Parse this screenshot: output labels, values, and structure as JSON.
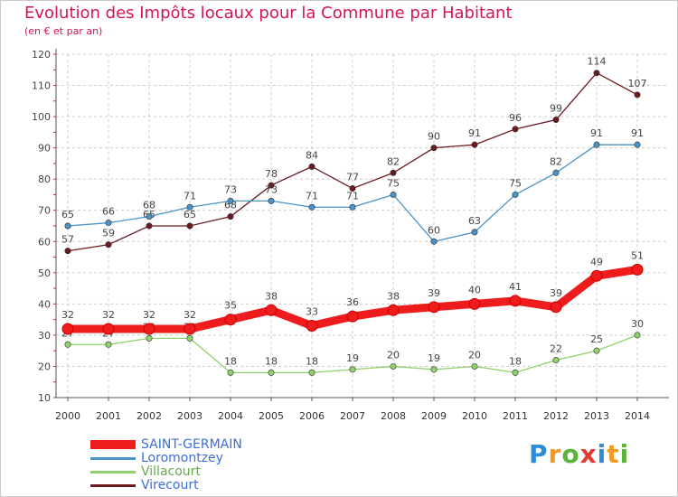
{
  "title": "Evolution des Impôts locaux pour la Commune par Habitant",
  "subtitle": "(en € et par an)",
  "logo": {
    "letters": [
      {
        "char": "P",
        "color": "#2e8bd6"
      },
      {
        "char": "r",
        "color": "#f29a1d"
      },
      {
        "char": "o",
        "color": "#5bb33a"
      },
      {
        "char": "x",
        "color": "#e53935"
      },
      {
        "char": "i",
        "color": "#2e8bd6"
      },
      {
        "char": "t",
        "color": "#f29a1d"
      },
      {
        "char": "i",
        "color": "#5bb33a"
      }
    ]
  },
  "chart_data": {
    "type": "line",
    "title": "Evolution des Impôts locaux pour la Commune par Habitant",
    "subtitle": "(en € et par an)",
    "x": [
      "2000",
      "2001",
      "2002",
      "2003",
      "2004",
      "2005",
      "2006",
      "2007",
      "2008",
      "2009",
      "2010",
      "2011",
      "2012",
      "2013",
      "2014"
    ],
    "ylim": [
      10,
      120
    ],
    "yticks": [
      10,
      20,
      30,
      40,
      50,
      60,
      70,
      80,
      90,
      100,
      110,
      120
    ],
    "grid": true,
    "legend_position": "bottom-left",
    "series": [
      {
        "name": "Virecourt",
        "color": "#6b1a1f",
        "emphasis": false,
        "values": [
          57,
          59,
          65,
          65,
          68,
          78,
          84,
          77,
          82,
          90,
          91,
          96,
          99,
          114,
          107
        ]
      },
      {
        "name": "Loromontzey",
        "color": "#4a93c8",
        "emphasis": false,
        "values": [
          65,
          66,
          68,
          71,
          73,
          73,
          71,
          71,
          75,
          60,
          63,
          75,
          82,
          91,
          91
        ]
      },
      {
        "name": "Villacourt",
        "color": "#8fd16a",
        "emphasis": false,
        "values": [
          27,
          27,
          29,
          29,
          18,
          18,
          18,
          19,
          20,
          19,
          20,
          18,
          22,
          25,
          30
        ]
      },
      {
        "name": "SAINT-GERMAIN",
        "color": "#ee1c1c",
        "emphasis": true,
        "values": [
          32,
          32,
          32,
          32,
          35,
          38,
          33,
          36,
          38,
          39,
          40,
          41,
          39,
          49,
          51
        ]
      }
    ],
    "legend_order": [
      "SAINT-GERMAIN",
      "Loromontzey",
      "Villacourt",
      "Virecourt"
    ]
  }
}
